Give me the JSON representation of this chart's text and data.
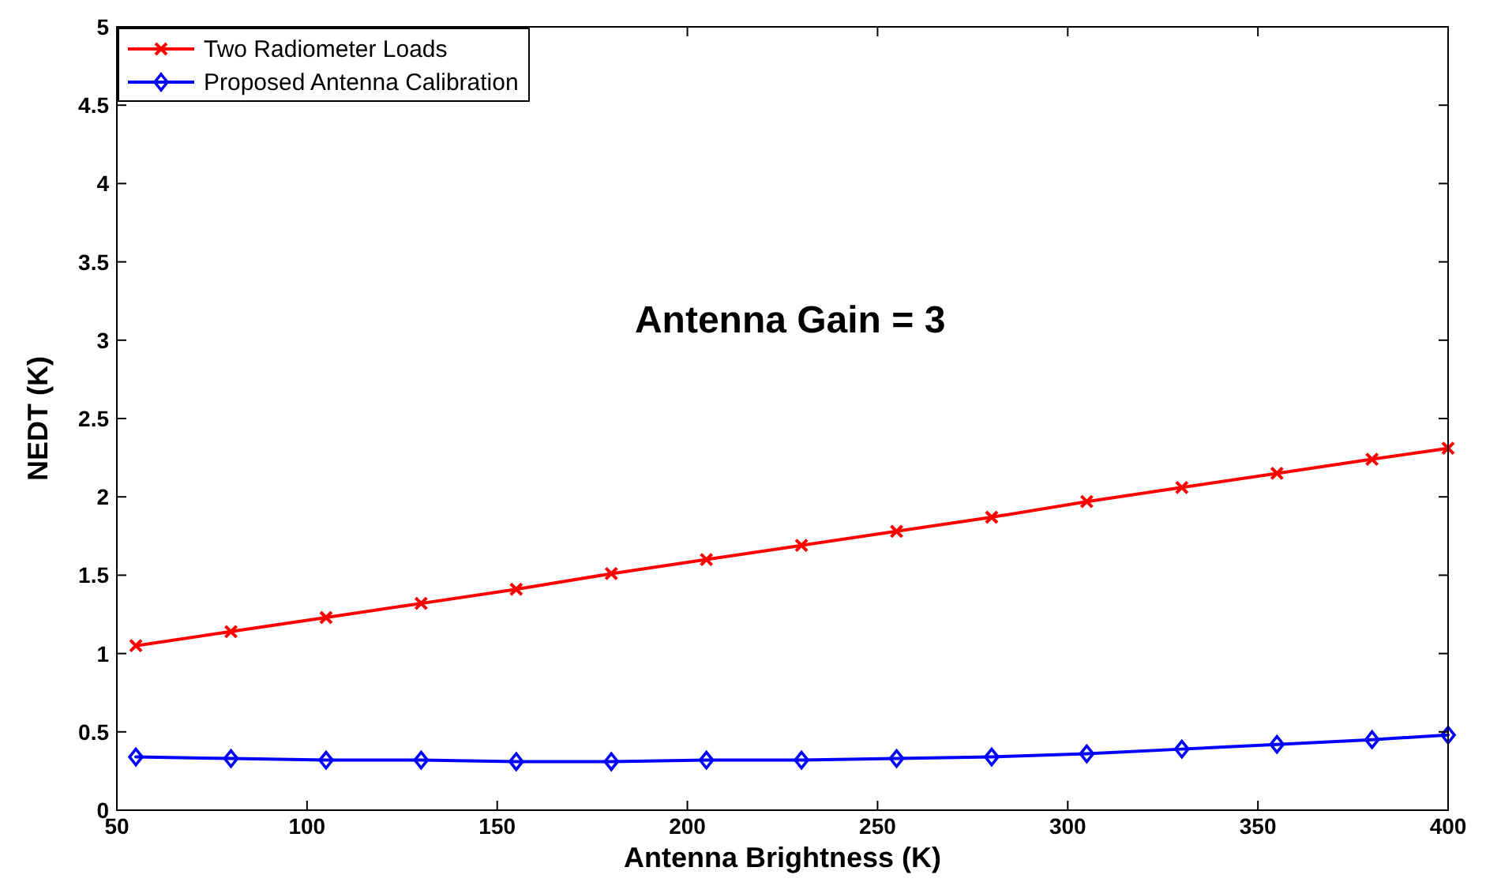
{
  "chart_data": {
    "type": "line",
    "xlabel": "Antenna Brightness (K)",
    "ylabel": "NEDT (K)",
    "annotations": [
      "Antenna Gain = 3"
    ],
    "xlim": [
      50,
      400
    ],
    "xticks": [
      50,
      100,
      150,
      200,
      250,
      300,
      350,
      400
    ],
    "ylim": [
      0,
      5
    ],
    "yticks": [
      0,
      0.5,
      1,
      1.5,
      2,
      2.5,
      3,
      3.5,
      4,
      4.5,
      5
    ],
    "grid": false,
    "legend": "top left",
    "x": [
      55,
      80,
      105,
      130,
      155,
      180,
      205,
      230,
      255,
      280,
      305,
      330,
      355,
      380,
      400
    ],
    "series": [
      {
        "name": "Two Radiometer Loads",
        "color": "#ff0000",
        "marker": "cross",
        "values": [
          1.05,
          1.14,
          1.23,
          1.32,
          1.41,
          1.51,
          1.6,
          1.69,
          1.78,
          1.87,
          1.97,
          2.06,
          2.15,
          2.24,
          2.31
        ]
      },
      {
        "name": "Proposed Antenna Calibration",
        "color": "#0000ff",
        "marker": "diamond",
        "values": [
          0.34,
          0.33,
          0.32,
          0.32,
          0.31,
          0.31,
          0.32,
          0.32,
          0.33,
          0.34,
          0.36,
          0.39,
          0.42,
          0.45,
          0.48
        ]
      }
    ]
  }
}
